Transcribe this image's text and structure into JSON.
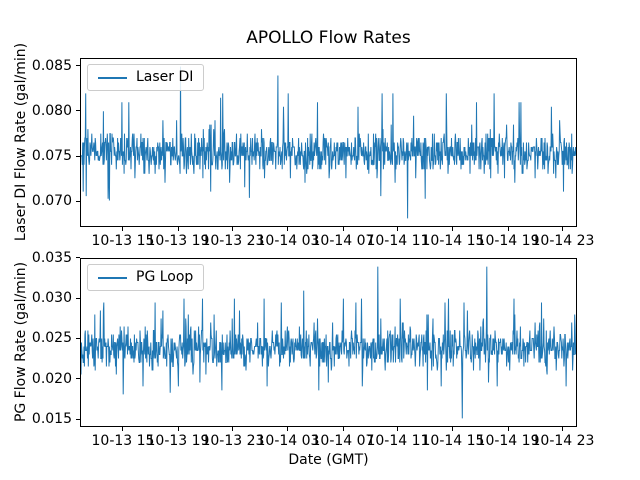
{
  "figure": {
    "title": "APOLLO Flow Rates",
    "xlabel": "Date (GMT)",
    "background_color": "#ffffff",
    "text_color": "#000000",
    "line_color": "#1f77b4",
    "legend_border_color": "#cccccc"
  },
  "x_axis": {
    "label": "Date (GMT)",
    "tick_labels": [
      "10-13 15",
      "10-13 19",
      "10-13 23",
      "10-14 03",
      "10-14 07",
      "10-14 11",
      "10-14 15",
      "10-14 19",
      "10-14 23"
    ],
    "tick_positions": [
      0.0865,
      0.1972,
      0.3078,
      0.4185,
      0.5292,
      0.6398,
      0.7505,
      0.8612,
      0.9718
    ],
    "tick_interval": "4 hours"
  },
  "chart_data": [
    {
      "type": "line",
      "legend": "Laser DI",
      "ylabel": "Laser DI Flow Rate (gal/min)",
      "ytick_labels": [
        "0.085",
        "0.080",
        "0.075",
        "0.070"
      ],
      "ylim": [
        0.06715,
        0.08585
      ],
      "series": {
        "name": "Laser DI",
        "color": "#1f77b4",
        "mean": 0.0754,
        "noise_std": 0.0011,
        "dense_band": [
          0.074,
          0.077
        ],
        "min": 0.068,
        "max": 0.085,
        "n_points": 1150,
        "seed": 7,
        "spike_prob": 0.055,
        "spike_min": 0.0012,
        "spike_range": 0.0038,
        "clamp": [
          0.0699,
          0.0809
        ],
        "quantum": 0.0005,
        "forced_points": [
          {
            "x": 0.01,
            "v": 0.082
          },
          {
            "x": 0.055,
            "v": 0.0702
          },
          {
            "x": 0.097,
            "v": 0.081
          },
          {
            "x": 0.201,
            "v": 0.085
          },
          {
            "x": 0.282,
            "v": 0.0815
          },
          {
            "x": 0.286,
            "v": 0.082
          },
          {
            "x": 0.34,
            "v": 0.0703
          },
          {
            "x": 0.398,
            "v": 0.084
          },
          {
            "x": 0.419,
            "v": 0.082
          },
          {
            "x": 0.478,
            "v": 0.081
          },
          {
            "x": 0.56,
            "v": 0.0805
          },
          {
            "x": 0.608,
            "v": 0.082
          },
          {
            "x": 0.63,
            "v": 0.082
          },
          {
            "x": 0.66,
            "v": 0.068
          },
          {
            "x": 0.695,
            "v": 0.0702
          },
          {
            "x": 0.738,
            "v": 0.082
          },
          {
            "x": 0.799,
            "v": 0.081
          },
          {
            "x": 0.835,
            "v": 0.082
          },
          {
            "x": 0.885,
            "v": 0.081
          },
          {
            "x": 0.95,
            "v": 0.0805
          }
        ]
      }
    },
    {
      "type": "line",
      "legend": "PG Loop",
      "ylabel": "PG Flow Rate (gal/min)",
      "ytick_labels": [
        "0.035",
        "0.030",
        "0.025",
        "0.020",
        "0.015"
      ],
      "ylim": [
        0.01405,
        0.03495
      ],
      "series": {
        "name": "PG Loop",
        "color": "#1f77b4",
        "mean": 0.0238,
        "noise_std": 0.0012,
        "dense_band": [
          0.022,
          0.025
        ],
        "min": 0.015,
        "max": 0.034,
        "n_points": 1150,
        "seed": 13,
        "spike_prob": 0.06,
        "spike_min": 0.0012,
        "spike_range": 0.004,
        "clamp": [
          0.0191,
          0.0301
        ],
        "quantum": 0.0005,
        "forced_points": [
          {
            "x": 0.045,
            "v": 0.0285
          },
          {
            "x": 0.085,
            "v": 0.018
          },
          {
            "x": 0.15,
            "v": 0.0295
          },
          {
            "x": 0.18,
            "v": 0.0182
          },
          {
            "x": 0.245,
            "v": 0.03
          },
          {
            "x": 0.285,
            "v": 0.0185
          },
          {
            "x": 0.31,
            "v": 0.03
          },
          {
            "x": 0.37,
            "v": 0.03
          },
          {
            "x": 0.405,
            "v": 0.0295
          },
          {
            "x": 0.45,
            "v": 0.031
          },
          {
            "x": 0.48,
            "v": 0.0185
          },
          {
            "x": 0.53,
            "v": 0.03
          },
          {
            "x": 0.555,
            "v": 0.0295
          },
          {
            "x": 0.6,
            "v": 0.034
          },
          {
            "x": 0.645,
            "v": 0.03
          },
          {
            "x": 0.7,
            "v": 0.0185
          },
          {
            "x": 0.735,
            "v": 0.0295
          },
          {
            "x": 0.77,
            "v": 0.015
          },
          {
            "x": 0.82,
            "v": 0.034
          },
          {
            "x": 0.875,
            "v": 0.03
          },
          {
            "x": 0.93,
            "v": 0.0295
          }
        ]
      }
    }
  ]
}
